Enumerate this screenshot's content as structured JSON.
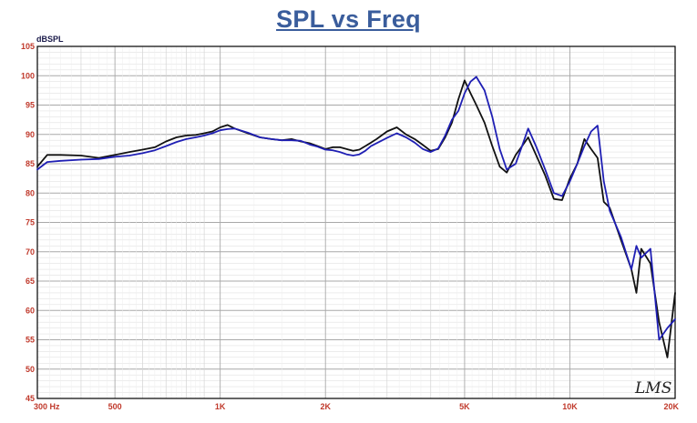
{
  "chart_data": {
    "type": "line",
    "title": "SPL vs Freq",
    "ylabel": "dBSPL",
    "xscale": "log",
    "xlim": [
      300,
      20000
    ],
    "ylim": [
      45,
      105
    ],
    "grid": true,
    "yticks": [
      45,
      50,
      55,
      60,
      65,
      70,
      75,
      80,
      85,
      90,
      95,
      100,
      105
    ],
    "xtick_labels": [
      {
        "value": 300,
        "label": "300  Hz"
      },
      {
        "value": 500,
        "label": "500"
      },
      {
        "value": 1000,
        "label": "1K"
      },
      {
        "value": 2000,
        "label": "2K"
      },
      {
        "value": 5000,
        "label": "5K"
      },
      {
        "value": 10000,
        "label": "10K"
      },
      {
        "value": 20000,
        "label": "20K"
      }
    ],
    "watermark": "LMS",
    "series": [
      {
        "color": "#111111",
        "x": [
          300,
          320,
          350,
          400,
          450,
          500,
          550,
          600,
          650,
          700,
          750,
          800,
          850,
          900,
          950,
          1000,
          1050,
          1100,
          1200,
          1300,
          1400,
          1500,
          1600,
          1700,
          1800,
          1900,
          2000,
          2100,
          2200,
          2300,
          2400,
          2500,
          2600,
          2700,
          2800,
          3000,
          3200,
          3400,
          3600,
          3800,
          4000,
          4200,
          4400,
          4600,
          4800,
          5000,
          5200,
          5400,
          5700,
          6000,
          6300,
          6600,
          7000,
          7300,
          7600,
          8000,
          8500,
          9000,
          9500,
          10000,
          10500,
          11000,
          11500,
          12000,
          12500,
          13000,
          14000,
          15000,
          15500,
          16000,
          17000,
          18000,
          19000,
          20000
        ],
        "y": [
          84.5,
          86.5,
          86.5,
          86.4,
          86.0,
          86.5,
          87.0,
          87.4,
          87.8,
          88.8,
          89.5,
          89.8,
          89.9,
          90.2,
          90.5,
          91.2,
          91.6,
          91.0,
          90.2,
          89.5,
          89.2,
          89.0,
          89.2,
          88.8,
          88.5,
          88.0,
          87.5,
          87.8,
          87.8,
          87.5,
          87.2,
          87.4,
          88.0,
          88.6,
          89.2,
          90.5,
          91.2,
          90.0,
          89.2,
          88.2,
          87.2,
          87.5,
          89.5,
          92.0,
          96.0,
          99.2,
          97.0,
          95.0,
          92.0,
          88.0,
          84.5,
          83.5,
          86.5,
          88.0,
          89.5,
          86.5,
          83.0,
          79.0,
          78.8,
          82.5,
          85.0,
          89.2,
          87.5,
          86.0,
          78.5,
          77.5,
          72.0,
          67.0,
          63.0,
          70.5,
          68.0,
          58.0,
          52.0,
          63.0
        ]
      },
      {
        "color": "#1f1fb4",
        "x": [
          300,
          320,
          350,
          400,
          450,
          500,
          550,
          600,
          650,
          700,
          750,
          800,
          850,
          900,
          950,
          1000,
          1050,
          1100,
          1200,
          1300,
          1400,
          1500,
          1600,
          1700,
          1800,
          1900,
          2000,
          2100,
          2200,
          2300,
          2400,
          2500,
          2600,
          2700,
          2800,
          3000,
          3200,
          3400,
          3600,
          3800,
          4000,
          4200,
          4400,
          4600,
          4800,
          5000,
          5200,
          5400,
          5700,
          6000,
          6300,
          6600,
          7000,
          7300,
          7600,
          8000,
          8500,
          9000,
          9500,
          10000,
          10500,
          11000,
          11500,
          12000,
          12500,
          13000,
          14000,
          15000,
          15500,
          16000,
          17000,
          18000,
          19000,
          20000
        ],
        "y": [
          84.0,
          85.3,
          85.5,
          85.7,
          85.8,
          86.2,
          86.4,
          86.8,
          87.3,
          88.0,
          88.7,
          89.2,
          89.5,
          89.8,
          90.2,
          90.7,
          90.9,
          91.0,
          90.3,
          89.5,
          89.2,
          89.0,
          89.0,
          88.9,
          88.3,
          87.9,
          87.4,
          87.3,
          87.0,
          86.6,
          86.4,
          86.6,
          87.2,
          88.0,
          88.5,
          89.4,
          90.2,
          89.5,
          88.6,
          87.5,
          87.0,
          87.6,
          89.8,
          92.5,
          94.0,
          97.0,
          99.0,
          99.8,
          97.5,
          93.0,
          87.5,
          84.0,
          85.0,
          88.0,
          91.0,
          88.0,
          84.0,
          80.0,
          79.5,
          82.0,
          85.0,
          88.0,
          90.5,
          91.5,
          82.0,
          77.0,
          72.5,
          67.0,
          71.0,
          69.0,
          70.5,
          55.0,
          57.0,
          58.5
        ]
      }
    ]
  }
}
